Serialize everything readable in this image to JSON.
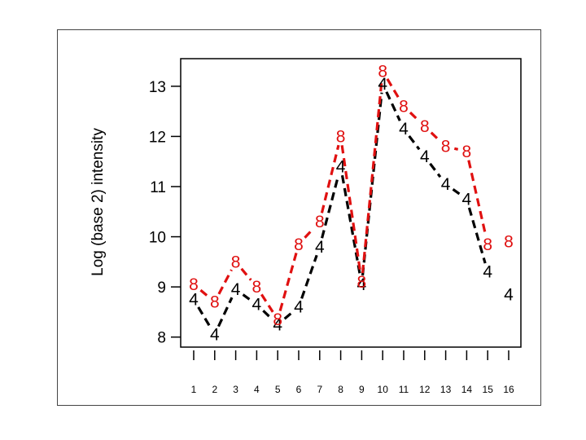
{
  "chart_data": {
    "type": "line",
    "title": "",
    "xlabel": "",
    "ylabel": "Log (base 2) intensity",
    "x": [
      1,
      2,
      3,
      4,
      5,
      6,
      7,
      8,
      9,
      10,
      11,
      12,
      13,
      14,
      15,
      16
    ],
    "xticklabels": [
      "1",
      "2",
      "3",
      "4",
      "5",
      "6",
      "7",
      "8",
      "9",
      "10",
      "11",
      "12",
      "13",
      "14",
      "15",
      "16"
    ],
    "ylim": [
      7.8,
      13.55
    ],
    "yticks": [
      8,
      9,
      10,
      11,
      12,
      13
    ],
    "yticklabels": [
      "8",
      "9",
      "10",
      "11",
      "12",
      "13"
    ],
    "grid": false,
    "legend": "none",
    "series": [
      {
        "symbol": "4",
        "color": "#000000",
        "line": "dashed",
        "values": [
          8.75,
          8.05,
          8.95,
          8.65,
          8.25,
          8.6,
          9.8,
          11.4,
          9.05,
          13.05,
          12.15,
          11.6,
          11.05,
          10.75,
          9.3,
          8.85
        ]
      },
      {
        "symbol": "8",
        "color": "#e01010",
        "line": "dashed",
        "values": [
          9.05,
          8.7,
          9.5,
          9.0,
          8.35,
          9.85,
          10.3,
          12.0,
          9.1,
          13.3,
          12.6,
          12.2,
          11.8,
          11.7,
          9.85,
          9.9
        ]
      }
    ]
  }
}
